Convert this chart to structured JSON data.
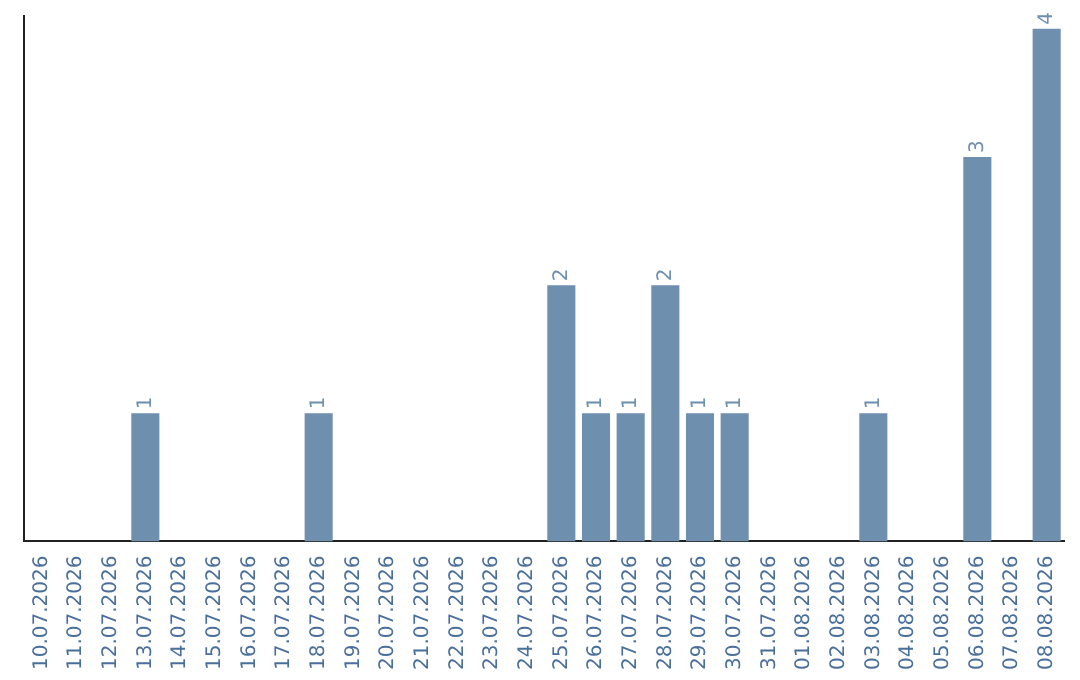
{
  "chart_data": {
    "type": "bar",
    "categories": [
      "10.07.2026",
      "11.07.2026",
      "12.07.2026",
      "13.07.2026",
      "14.07.2026",
      "15.07.2026",
      "16.07.2026",
      "17.07.2026",
      "18.07.2026",
      "19.07.2026",
      "20.07.2026",
      "21.07.2026",
      "22.07.2026",
      "23.07.2026",
      "24.07.2026",
      "25.07.2026",
      "26.07.2026",
      "27.07.2026",
      "28.07.2026",
      "29.07.2026",
      "30.07.2026",
      "31.07.2026",
      "01.08.2026",
      "02.08.2026",
      "03.08.2026",
      "04.08.2026",
      "05.08.2026",
      "06.08.2026",
      "07.08.2026",
      "08.08.2026"
    ],
    "values": [
      0,
      0,
      0,
      1,
      0,
      0,
      0,
      0,
      1,
      0,
      0,
      0,
      0,
      0,
      0,
      2,
      1,
      1,
      2,
      1,
      1,
      0,
      0,
      0,
      1,
      0,
      0,
      3,
      0,
      4
    ],
    "value_labels": [
      null,
      null,
      null,
      "1",
      null,
      null,
      null,
      null,
      "1",
      null,
      null,
      null,
      null,
      null,
      null,
      "2",
      "1",
      "1",
      "2",
      "1",
      "1",
      null,
      null,
      null,
      "1",
      null,
      null,
      "3",
      null,
      "4"
    ],
    "color": "#6f8fae",
    "ylim": [
      0,
      4.1
    ],
    "tick_labels": "x",
    "grid": false,
    "legend": false
  }
}
